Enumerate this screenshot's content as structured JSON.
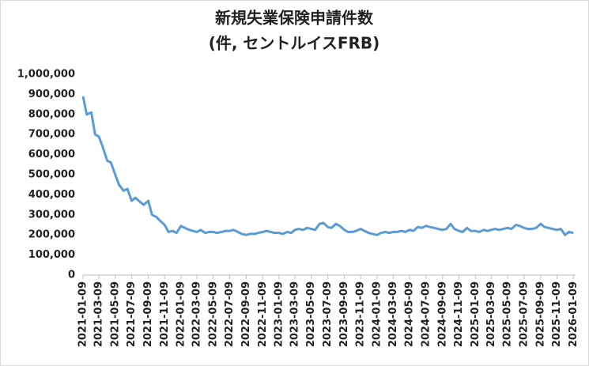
{
  "chart_data": {
    "type": "line",
    "title": "新規失業保険申請件数",
    "subtitle": "(件, セントルイスFRB)",
    "x": [
      "2021-01-09",
      "2021-01-23",
      "2021-02-09",
      "2021-02-23",
      "2021-03-09",
      "2021-03-23",
      "2021-04-09",
      "2021-04-23",
      "2021-05-09",
      "2021-05-23",
      "2021-06-09",
      "2021-06-23",
      "2021-07-09",
      "2021-07-23",
      "2021-08-09",
      "2021-08-23",
      "2021-09-09",
      "2021-09-23",
      "2021-10-09",
      "2021-10-23",
      "2021-11-09",
      "2021-11-23",
      "2021-12-09",
      "2021-12-23",
      "2022-01-09",
      "2022-01-23",
      "2022-02-09",
      "2022-02-23",
      "2022-03-09",
      "2022-03-23",
      "2022-04-09",
      "2022-04-23",
      "2022-05-09",
      "2022-05-23",
      "2022-06-09",
      "2022-06-23",
      "2022-07-09",
      "2022-07-23",
      "2022-08-09",
      "2022-08-23",
      "2022-09-09",
      "2022-09-23",
      "2022-10-09",
      "2022-10-23",
      "2022-11-09",
      "2022-11-23",
      "2022-12-09",
      "2022-12-23",
      "2023-01-09",
      "2023-01-23",
      "2023-02-09",
      "2023-02-23",
      "2023-03-09",
      "2023-03-23",
      "2023-04-09",
      "2023-04-23",
      "2023-05-09",
      "2023-05-23",
      "2023-06-09",
      "2023-06-23",
      "2023-07-09",
      "2023-07-23",
      "2023-08-09",
      "2023-08-23",
      "2023-09-09",
      "2023-09-23",
      "2023-10-09",
      "2023-10-23",
      "2023-11-09",
      "2023-11-23",
      "2023-12-09",
      "2023-12-23",
      "2024-01-09",
      "2024-01-23",
      "2024-02-09",
      "2024-02-23",
      "2024-03-09",
      "2024-03-23",
      "2024-04-09",
      "2024-04-23",
      "2024-05-09",
      "2024-05-23",
      "2024-06-09",
      "2024-06-23",
      "2024-07-09",
      "2024-07-23",
      "2024-08-09",
      "2024-08-23",
      "2024-09-09",
      "2024-09-23",
      "2024-10-09",
      "2024-10-23",
      "2024-11-09",
      "2024-11-23",
      "2024-12-09",
      "2024-12-23",
      "2025-01-09",
      "2025-01-23",
      "2025-02-09",
      "2025-02-23",
      "2025-03-09",
      "2025-03-23",
      "2025-04-09",
      "2025-04-23",
      "2025-05-09",
      "2025-05-23",
      "2025-06-09",
      "2025-06-23",
      "2025-07-09",
      "2025-07-23",
      "2025-08-09",
      "2025-08-23",
      "2025-09-09",
      "2025-09-23",
      "2025-10-09",
      "2025-10-23",
      "2025-11-09",
      "2025-11-23",
      "2025-12-09",
      "2025-12-23",
      "2026-01-09"
    ],
    "series": [
      {
        "name": "新規失業保険申請件数",
        "color": "#5b9bd5",
        "values": [
          890000,
          800000,
          810000,
          700000,
          690000,
          640000,
          570000,
          560000,
          500000,
          450000,
          420000,
          430000,
          370000,
          385000,
          365000,
          350000,
          370000,
          300000,
          290000,
          270000,
          250000,
          215000,
          220000,
          210000,
          245000,
          235000,
          225000,
          220000,
          215000,
          225000,
          210000,
          215000,
          215000,
          210000,
          215000,
          220000,
          220000,
          225000,
          215000,
          205000,
          200000,
          205000,
          205000,
          210000,
          215000,
          220000,
          215000,
          210000,
          210000,
          205000,
          215000,
          210000,
          225000,
          230000,
          225000,
          235000,
          230000,
          225000,
          255000,
          260000,
          240000,
          235000,
          255000,
          245000,
          225000,
          215000,
          215000,
          220000,
          230000,
          220000,
          210000,
          205000,
          200000,
          210000,
          215000,
          210000,
          215000,
          215000,
          220000,
          215000,
          225000,
          220000,
          240000,
          235000,
          245000,
          240000,
          235000,
          230000,
          225000,
          230000,
          255000,
          230000,
          220000,
          215000,
          235000,
          220000,
          220000,
          215000,
          225000,
          220000,
          225000,
          230000,
          225000,
          230000,
          235000,
          230000,
          250000,
          245000,
          235000,
          230000,
          230000,
          235000,
          255000,
          240000,
          235000,
          230000,
          225000,
          230000,
          200000,
          215000,
          210000
        ]
      }
    ],
    "xlim": [
      "2021-01-09",
      "2026-01-17"
    ],
    "xticks": [
      "2021-01-09",
      "2021-03-09",
      "2021-05-09",
      "2021-07-09",
      "2021-09-09",
      "2021-11-09",
      "2022-01-09",
      "2022-03-09",
      "2022-05-09",
      "2022-07-09",
      "2022-09-09",
      "2022-11-09",
      "2023-01-09",
      "2023-03-09",
      "2023-05-09",
      "2023-07-09",
      "2023-09-09",
      "2023-11-09",
      "2024-01-09",
      "2024-03-09",
      "2024-05-09",
      "2024-07-09",
      "2024-09-09",
      "2024-11-09",
      "2025-01-09",
      "2025-03-09",
      "2025-05-09",
      "2025-07-09",
      "2025-09-09",
      "2025-11-09",
      "2026-01-09"
    ],
    "ylim": [
      0,
      1000000
    ],
    "yticks": [
      0,
      {
        "value": 100000,
        "label": "100,000"
      },
      {
        "value": 200000,
        "label": "200,000"
      },
      {
        "value": 300000,
        "label": "300,000"
      },
      {
        "value": 400000,
        "label": "400,000"
      },
      {
        "value": 500000,
        "label": "500,000"
      },
      {
        "value": 600000,
        "label": "600,000"
      },
      {
        "value": 700000,
        "label": "700,000"
      },
      {
        "value": 800000,
        "label": "800,000"
      },
      {
        "value": 900000,
        "label": "900,000"
      },
      {
        "value": 1000000,
        "label": "1,000,000"
      }
    ],
    "grid": false
  }
}
